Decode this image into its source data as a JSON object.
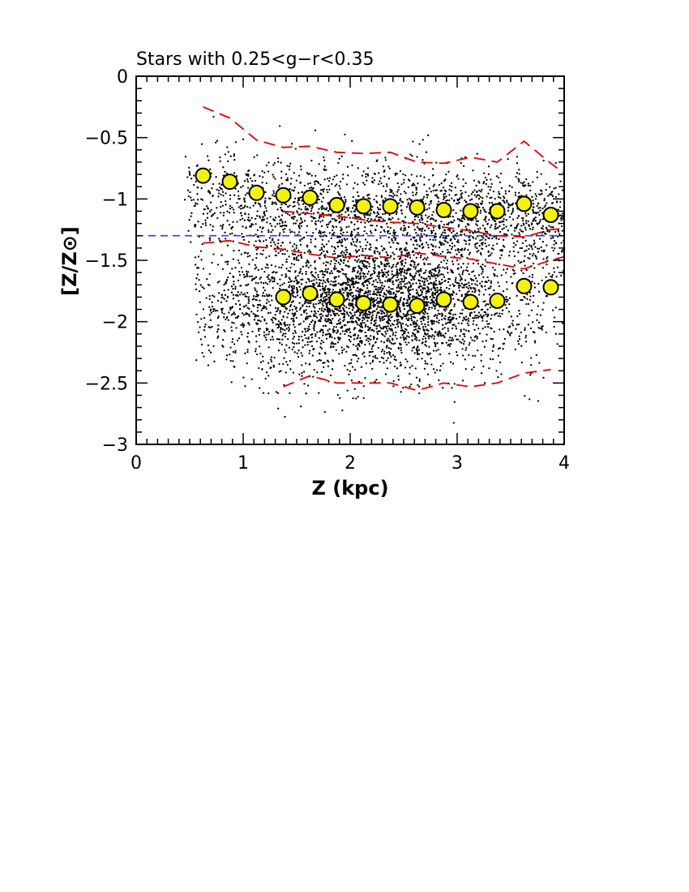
{
  "chart_data": {
    "type": "scatter",
    "title": "Stars with 0.25<g−r<0.35",
    "xlabel": "Z (kpc)",
    "ylabel": "[Z/Z⊙]",
    "xlim": [
      0,
      4
    ],
    "ylim": [
      -3,
      0
    ],
    "x_ticks": [
      "0",
      "1",
      "2",
      "3",
      "4"
    ],
    "y_ticks": [
      "−3",
      "−2.5",
      "−2",
      "−1.5",
      "−1",
      "−0.5",
      "0"
    ],
    "grid": false,
    "legend": "none",
    "colors": {
      "points": "#000000",
      "medians_fill": "#f2f20d",
      "medians_edge": "#000000",
      "envelope": "#e00000",
      "reference_line": "#2a3de8"
    },
    "scatter_note": "dense cloud of individual stars: upper clump near [Z/Z⊙] ≈ −1.05, lower clump near −1.8, spanning Z ≈ 0.4–4 kpc",
    "series": [
      {
        "name": "",
        "role": "upper component medians",
        "x": [
          0.625,
          0.875,
          1.125,
          1.375,
          1.625,
          1.875,
          2.125,
          2.375,
          2.625,
          2.875,
          3.125,
          3.375,
          3.625,
          3.875
        ],
        "y": [
          -0.81,
          -0.86,
          -0.95,
          -0.97,
          -0.99,
          -1.05,
          -1.06,
          -1.06,
          -1.07,
          -1.09,
          -1.1,
          -1.1,
          -1.04,
          -1.13
        ]
      },
      {
        "name": "",
        "role": "lower component medians",
        "x": [
          1.375,
          1.625,
          1.875,
          2.125,
          2.375,
          2.625,
          2.875,
          3.125,
          3.375,
          3.625,
          3.875
        ],
        "y": [
          -1.8,
          -1.77,
          -1.82,
          -1.85,
          -1.86,
          -1.87,
          -1.82,
          -1.84,
          -1.83,
          -1.71,
          -1.72
        ]
      }
    ],
    "lines": [
      {
        "role": "upper envelope top",
        "style": "dashed",
        "x": [
          0.625,
          0.875,
          1.125,
          1.375,
          1.625,
          1.875,
          2.125,
          2.375,
          2.625,
          2.875,
          3.125,
          3.375,
          3.625,
          3.875,
          4.0
        ],
        "y": [
          -0.25,
          -0.34,
          -0.52,
          -0.58,
          -0.57,
          -0.62,
          -0.63,
          -0.62,
          -0.7,
          -0.71,
          -0.66,
          -0.7,
          -0.53,
          -0.71,
          -0.79
        ]
      },
      {
        "role": "upper envelope bottom",
        "style": "dashed",
        "x": [
          1.375,
          1.625,
          1.875,
          2.125,
          2.375,
          2.625,
          2.875,
          3.125,
          3.375,
          3.625,
          3.875,
          4.0
        ],
        "y": [
          -1.1,
          -1.12,
          -1.14,
          -1.17,
          -1.19,
          -1.2,
          -1.23,
          -1.26,
          -1.3,
          -1.31,
          -1.25,
          -1.24
        ]
      },
      {
        "role": "lower envelope top",
        "style": "dashed",
        "x": [
          0.625,
          0.875,
          1.125,
          1.375,
          1.625,
          1.875,
          2.125,
          2.375,
          2.625,
          2.875,
          3.125,
          3.375,
          3.625,
          3.875,
          4.0
        ],
        "y": [
          -1.36,
          -1.34,
          -1.39,
          -1.41,
          -1.45,
          -1.48,
          -1.46,
          -1.48,
          -1.44,
          -1.47,
          -1.49,
          -1.53,
          -1.57,
          -1.5,
          -1.47
        ]
      },
      {
        "role": "lower envelope bottom",
        "style": "dashed",
        "x": [
          1.375,
          1.625,
          1.875,
          2.125,
          2.375,
          2.625,
          2.875,
          3.125,
          3.375,
          3.625,
          3.875
        ],
        "y": [
          -2.53,
          -2.44,
          -2.5,
          -2.5,
          -2.5,
          -2.56,
          -2.5,
          -2.53,
          -2.5,
          -2.42,
          -2.39
        ]
      }
    ],
    "reference_lines": [
      {
        "axis": "y",
        "value": -1.3,
        "style": "dashed"
      }
    ]
  }
}
